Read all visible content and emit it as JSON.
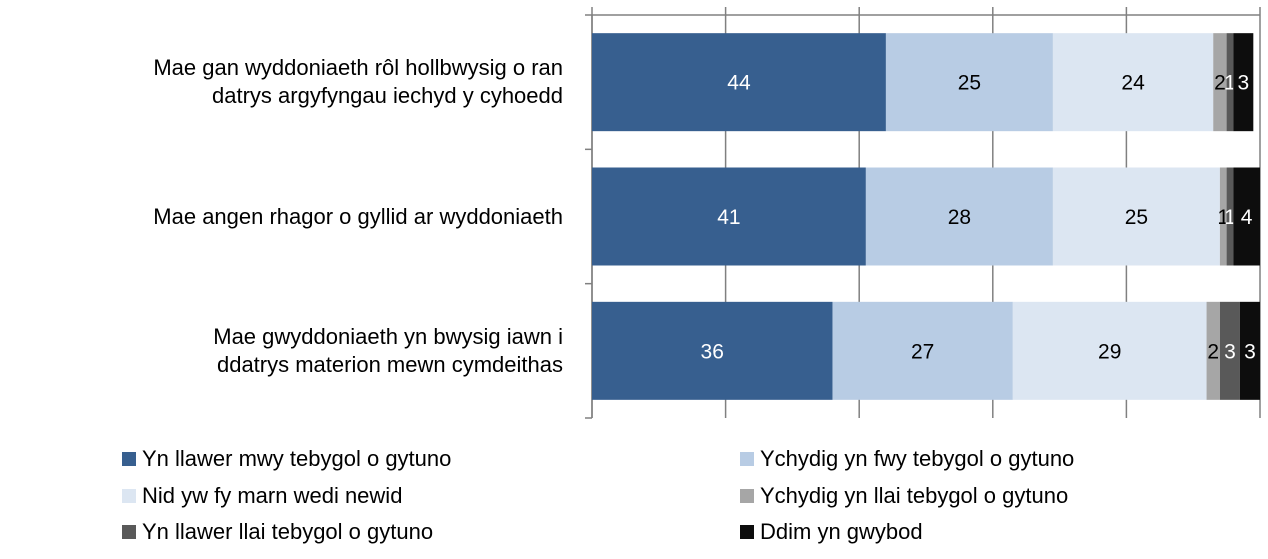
{
  "chart_data": {
    "type": "stacked_bar_horizontal",
    "categories": [
      "Mae gan wyddoniaeth rôl hollbwysig o ran\ndatrys argyfyngau iechyd y cyhoedd",
      "Mae angen rhagor o gyllid ar wyddoniaeth",
      "Mae gwyddoniaeth yn bwysig iawn i\nddatrys materion mewn cymdeithas"
    ],
    "series": [
      {
        "name": "Yn llawer mwy tebygol o gytuno",
        "color": "#375f8f",
        "values": [
          44,
          41,
          36
        ]
      },
      {
        "name": "Ychydig yn fwy tebygol o gytuno",
        "color": "#b8cce4",
        "values": [
          25,
          28,
          27
        ]
      },
      {
        "name": "Nid yw fy marn wedi newid",
        "color": "#dce6f2",
        "values": [
          24,
          25,
          29
        ]
      },
      {
        "name": "Ychydig yn llai tebygol o gytuno",
        "color": "#a6a6a6",
        "values": [
          2,
          1,
          2
        ]
      },
      {
        "name": "Yn llawer llai tebygol o gytuno",
        "color": "#595959",
        "values": [
          1,
          1,
          3
        ]
      },
      {
        "name": "Ddim yn gwybod",
        "color": "#0d0d0d",
        "values": [
          3,
          4,
          3
        ]
      }
    ],
    "xlim": [
      0,
      100
    ],
    "xticks": [
      0,
      20,
      40,
      60,
      80,
      100
    ],
    "legend": "bottom"
  }
}
